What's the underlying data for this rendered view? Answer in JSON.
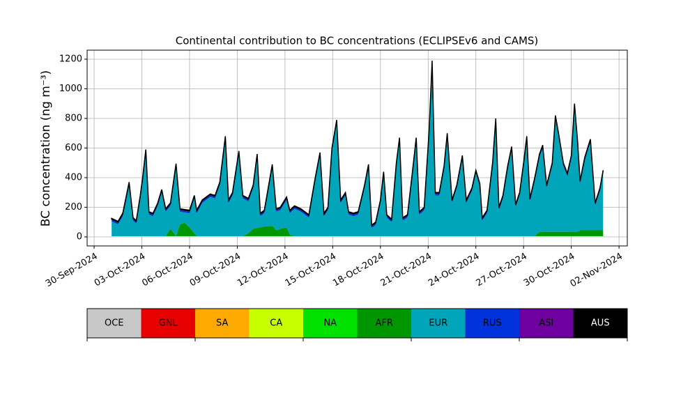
{
  "chart_data": {
    "type": "stacked_area",
    "title": "Continental contribution to BC concentrations (ECLIPSEv6 and CAMS)",
    "y_label": "BC concentration (ng m⁻³)",
    "xlim": [
      -0.44,
      33.52
    ],
    "xticks": [
      {
        "value": 0,
        "label": "30-Sep-2024"
      },
      {
        "value": 3,
        "label": "03-Oct-2024"
      },
      {
        "value": 6,
        "label": "06-Oct-2024"
      },
      {
        "value": 9,
        "label": "09-Oct-2024"
      },
      {
        "value": 12,
        "label": "12-Oct-2024"
      },
      {
        "value": 15,
        "label": "15-Oct-2024"
      },
      {
        "value": 18,
        "label": "18-Oct-2024"
      },
      {
        "value": 21,
        "label": "21-Oct-2024"
      },
      {
        "value": 24,
        "label": "24-Oct-2024"
      },
      {
        "value": 27,
        "label": "27-Oct-2024"
      },
      {
        "value": 30,
        "label": "30-Oct-2024"
      },
      {
        "value": 33,
        "label": "02-Nov-2024"
      }
    ],
    "ylim": [
      -61,
      1261
    ],
    "yticks": [
      0,
      200,
      400,
      600,
      800,
      1000,
      1200
    ],
    "grid": true,
    "x": [
      1.1,
      1.5,
      1.8,
      2.2,
      2.45,
      2.65,
      2.9,
      3.05,
      3.25,
      3.45,
      3.7,
      4.0,
      4.25,
      4.5,
      4.8,
      5.15,
      5.4,
      5.7,
      6.0,
      6.3,
      6.45,
      6.8,
      7.3,
      7.6,
      7.9,
      8.25,
      8.45,
      8.7,
      9.1,
      9.35,
      9.7,
      10.0,
      10.25,
      10.45,
      10.7,
      11.2,
      11.45,
      11.7,
      12.1,
      12.3,
      12.6,
      13.0,
      13.5,
      13.9,
      14.2,
      14.45,
      14.7,
      14.95,
      15.25,
      15.5,
      15.8,
      16.0,
      16.3,
      16.6,
      17.0,
      17.25,
      17.45,
      17.7,
      18.0,
      18.2,
      18.4,
      18.7,
      19.0,
      19.2,
      19.4,
      19.7,
      20.0,
      20.25,
      20.45,
      20.75,
      21.05,
      21.25,
      21.45,
      21.7,
      22.0,
      22.2,
      22.5,
      22.8,
      23.15,
      23.4,
      23.75,
      24.0,
      24.25,
      24.4,
      24.7,
      25.05,
      25.25,
      25.45,
      25.7,
      26.0,
      26.25,
      26.5,
      26.75,
      27.0,
      27.2,
      27.4,
      27.7,
      28.0,
      28.2,
      28.45,
      28.8,
      29.0,
      29.2,
      29.5,
      29.75,
      30.0,
      30.2,
      30.4,
      30.55,
      30.85,
      31.2,
      31.5,
      31.8,
      32.0
    ],
    "series": [
      {
        "name": "OCE",
        "color": "#c8c8c8",
        "values": [
          0,
          0,
          0,
          0,
          0,
          0,
          0,
          0,
          0,
          0,
          0,
          0,
          0,
          0,
          0,
          0,
          0,
          0,
          0,
          0,
          0,
          0,
          0,
          0,
          0,
          0,
          0,
          0,
          0,
          0,
          0,
          0,
          0,
          0,
          0,
          0,
          0,
          0,
          0,
          0,
          0,
          0,
          0,
          0,
          0,
          0,
          0,
          0,
          0,
          0,
          0,
          0,
          0,
          0,
          0,
          0,
          0,
          0,
          0,
          0,
          0,
          0,
          0,
          0,
          0,
          0,
          0,
          0,
          0,
          0,
          0,
          0,
          0,
          0,
          0,
          0,
          0,
          0,
          0,
          0,
          0,
          0,
          0,
          0,
          0,
          0,
          0,
          0,
          0,
          0,
          0,
          0,
          0,
          0,
          0,
          0,
          0,
          0,
          0,
          0,
          0,
          0,
          0,
          0,
          0,
          0,
          0,
          0,
          0,
          0,
          0,
          0,
          0,
          0
        ]
      },
      {
        "name": "GNL",
        "color": "#e60000",
        "values": [
          0,
          0,
          0,
          0,
          0,
          0,
          0,
          0,
          0,
          0,
          0,
          0,
          0,
          0,
          0,
          0,
          0,
          0,
          0,
          0,
          0,
          0,
          0,
          0,
          0,
          0,
          0,
          0,
          0,
          0,
          0,
          0,
          0,
          0,
          0,
          0,
          0,
          0,
          0,
          0,
          0,
          0,
          0,
          0,
          0,
          0,
          0,
          0,
          0,
          0,
          0,
          0,
          0,
          0,
          0,
          0,
          0,
          0,
          0,
          0,
          0,
          0,
          0,
          0,
          0,
          0,
          0,
          0,
          0,
          0,
          0,
          0,
          0,
          0,
          0,
          0,
          0,
          0,
          0,
          0,
          0,
          0,
          0,
          0,
          0,
          0,
          0,
          0,
          0,
          0,
          0,
          0,
          0,
          0,
          0,
          0,
          0,
          0,
          0,
          0,
          0,
          0,
          0,
          0,
          0,
          0,
          0,
          0,
          0,
          0,
          0,
          0,
          0,
          0
        ]
      },
      {
        "name": "SA",
        "color": "#ffaa00",
        "values": [
          0,
          0,
          0,
          0,
          0,
          0,
          0,
          0,
          0,
          0,
          0,
          0,
          0,
          0,
          0,
          0,
          0,
          0,
          0,
          0,
          0,
          0,
          0,
          0,
          0,
          0,
          0,
          0,
          0,
          0,
          0,
          0,
          0,
          0,
          0,
          0,
          0,
          0,
          0,
          0,
          0,
          0,
          0,
          0,
          0,
          0,
          0,
          0,
          0,
          0,
          0,
          0,
          0,
          0,
          0,
          0,
          0,
          0,
          0,
          0,
          0,
          0,
          0,
          0,
          0,
          0,
          0,
          0,
          0,
          0,
          0,
          0,
          0,
          0,
          0,
          0,
          0,
          0,
          0,
          0,
          0,
          0,
          0,
          0,
          0,
          0,
          0,
          0,
          0,
          0,
          0,
          0,
          0,
          0,
          0,
          0,
          0,
          0,
          0,
          0,
          0,
          0,
          0,
          0,
          0,
          0,
          0,
          0,
          0,
          0,
          0,
          0,
          0,
          0
        ]
      },
      {
        "name": "CA",
        "color": "#c8ff00",
        "values": [
          5,
          5,
          5,
          5,
          5,
          5,
          5,
          5,
          5,
          5,
          5,
          5,
          5,
          5,
          5,
          5,
          5,
          5,
          5,
          5,
          5,
          5,
          5,
          5,
          5,
          5,
          5,
          5,
          5,
          5,
          5,
          5,
          5,
          5,
          5,
          5,
          5,
          5,
          5,
          5,
          5,
          5,
          5,
          5,
          5,
          5,
          5,
          5,
          5,
          5,
          5,
          5,
          5,
          5,
          5,
          5,
          5,
          5,
          5,
          5,
          5,
          5,
          5,
          5,
          5,
          5,
          5,
          5,
          5,
          5,
          5,
          5,
          5,
          5,
          5,
          5,
          5,
          5,
          5,
          5,
          5,
          5,
          5,
          5,
          5,
          5,
          5,
          5,
          5,
          5,
          5,
          5,
          5,
          5,
          5,
          5,
          5,
          5,
          5,
          5,
          5,
          5,
          5,
          5,
          5,
          5,
          5,
          5,
          5,
          5,
          5,
          5,
          5,
          5
        ]
      },
      {
        "name": "NA",
        "color": "#00e100",
        "values": [
          0,
          0,
          0,
          0,
          0,
          0,
          0,
          0,
          0,
          0,
          0,
          0,
          0,
          0,
          0,
          0,
          0,
          0,
          0,
          0,
          0,
          0,
          0,
          0,
          0,
          0,
          0,
          0,
          0,
          0,
          0,
          0,
          0,
          0,
          0,
          0,
          0,
          0,
          0,
          0,
          0,
          0,
          0,
          0,
          0,
          0,
          0,
          0,
          0,
          0,
          0,
          0,
          0,
          0,
          0,
          0,
          0,
          0,
          0,
          0,
          0,
          0,
          0,
          0,
          0,
          0,
          0,
          0,
          0,
          0,
          0,
          0,
          0,
          0,
          0,
          0,
          0,
          0,
          0,
          0,
          0,
          0,
          0,
          0,
          0,
          0,
          0,
          0,
          0,
          0,
          0,
          0,
          0,
          0,
          0,
          0,
          0,
          0,
          0,
          0,
          0,
          0,
          0,
          0,
          0,
          0,
          0,
          0,
          0,
          0,
          0,
          0,
          0,
          0
        ]
      },
      {
        "name": "AFR",
        "color": "#009600",
        "values": [
          0,
          0,
          0,
          0,
          0,
          0,
          0,
          0,
          0,
          0,
          0,
          0,
          0,
          0,
          50,
          0,
          80,
          90,
          60,
          20,
          0,
          0,
          0,
          0,
          0,
          0,
          0,
          0,
          0,
          0,
          20,
          50,
          55,
          60,
          65,
          70,
          40,
          50,
          60,
          10,
          0,
          0,
          0,
          0,
          0,
          0,
          0,
          0,
          0,
          0,
          0,
          0,
          0,
          0,
          0,
          0,
          0,
          0,
          0,
          0,
          0,
          0,
          0,
          0,
          0,
          0,
          0,
          0,
          0,
          0,
          0,
          0,
          0,
          0,
          0,
          0,
          0,
          0,
          0,
          0,
          0,
          0,
          0,
          0,
          0,
          0,
          0,
          0,
          0,
          0,
          0,
          0,
          0,
          0,
          0,
          0,
          0,
          30,
          30,
          30,
          30,
          30,
          30,
          30,
          30,
          30,
          30,
          30,
          40,
          40,
          40,
          40,
          40,
          40
        ]
      },
      {
        "name": "EUR",
        "color": "#00a5b9",
        "values": [
          100,
          80,
          135,
          345,
          105,
          85,
          255,
          375,
          565,
          145,
          135,
          205,
          295,
          165,
          155,
          470,
          85,
          70,
          95,
          235,
          155,
          225,
          265,
          255,
          345,
          655,
          225,
          275,
          555,
          255,
          215,
          275,
          480,
          75,
          90,
          395,
          125,
          125,
          185,
          145,
          185,
          165,
          125,
          375,
          545,
          135,
          175,
          575,
          765,
          225,
          275,
          145,
          135,
          145,
          325,
          465,
          55,
          75,
          225,
          415,
          125,
          95,
          475,
          645,
          105,
          125,
          405,
          645,
          145,
          175,
          675,
          1165,
          275,
          275,
          455,
          675,
          225,
          325,
          525,
          225,
          305,
          425,
          335,
          105,
          155,
          475,
          775,
          175,
          255,
          455,
          585,
          195,
          275,
          475,
          655,
          235,
          375,
          505,
          565,
          295,
          445,
          765,
          645,
          445,
          375,
          495,
          845,
          585,
          315,
          475,
          595,
          165,
          265,
          385
        ]
      },
      {
        "name": "RUS",
        "color": "#0032dc",
        "values": [
          10,
          10,
          10,
          10,
          10,
          10,
          10,
          10,
          10,
          10,
          10,
          10,
          10,
          10,
          10,
          10,
          10,
          10,
          10,
          10,
          10,
          10,
          10,
          10,
          10,
          10,
          10,
          10,
          10,
          10,
          10,
          10,
          10,
          10,
          10,
          10,
          10,
          10,
          10,
          10,
          10,
          10,
          10,
          10,
          10,
          10,
          10,
          10,
          10,
          10,
          10,
          10,
          10,
          10,
          10,
          10,
          10,
          10,
          10,
          10,
          10,
          10,
          10,
          10,
          10,
          10,
          10,
          10,
          10,
          10,
          10,
          10,
          10,
          10,
          10,
          10,
          10,
          10,
          10,
          10,
          10,
          10,
          10,
          10,
          10,
          10,
          10,
          10,
          10,
          10,
          10,
          10,
          10,
          10,
          10,
          10,
          10,
          10,
          10,
          10,
          10,
          10,
          10,
          10,
          10,
          10,
          10,
          10,
          10,
          10,
          10,
          10,
          10,
          10
        ]
      },
      {
        "name": "ASI",
        "color": "#6e00a0",
        "values": [
          5,
          5,
          5,
          5,
          5,
          5,
          5,
          5,
          5,
          5,
          5,
          5,
          5,
          5,
          5,
          5,
          5,
          5,
          5,
          5,
          5,
          5,
          5,
          5,
          5,
          5,
          5,
          5,
          5,
          5,
          5,
          5,
          5,
          5,
          5,
          5,
          5,
          5,
          5,
          5,
          5,
          5,
          5,
          5,
          5,
          5,
          5,
          5,
          5,
          5,
          5,
          5,
          5,
          5,
          5,
          5,
          5,
          5,
          5,
          5,
          5,
          5,
          5,
          5,
          5,
          5,
          5,
          5,
          5,
          5,
          5,
          5,
          5,
          5,
          5,
          5,
          5,
          5,
          5,
          5,
          5,
          5,
          5,
          5,
          5,
          5,
          5,
          5,
          5,
          5,
          5,
          5,
          5,
          5,
          5,
          5,
          5,
          5,
          5,
          5,
          5,
          5,
          5,
          5,
          5,
          5,
          5,
          5,
          5,
          5,
          5,
          5,
          5,
          5
        ]
      },
      {
        "name": "AUS",
        "color": "#000000",
        "values": [
          5,
          5,
          5,
          5,
          5,
          5,
          5,
          5,
          5,
          5,
          5,
          5,
          5,
          5,
          5,
          5,
          5,
          5,
          5,
          5,
          5,
          5,
          5,
          5,
          5,
          5,
          5,
          5,
          5,
          5,
          5,
          5,
          5,
          5,
          5,
          5,
          5,
          5,
          5,
          5,
          5,
          5,
          5,
          5,
          5,
          5,
          5,
          5,
          5,
          5,
          5,
          5,
          5,
          5,
          5,
          5,
          5,
          5,
          5,
          5,
          5,
          5,
          5,
          5,
          5,
          5,
          5,
          5,
          5,
          5,
          5,
          5,
          5,
          5,
          5,
          5,
          5,
          5,
          5,
          5,
          5,
          5,
          5,
          5,
          5,
          5,
          5,
          5,
          5,
          5,
          5,
          5,
          5,
          5,
          5,
          5,
          5,
          5,
          5,
          5,
          5,
          5,
          5,
          5,
          5,
          5,
          5,
          5,
          5,
          5,
          5,
          5,
          5,
          5
        ]
      }
    ]
  }
}
